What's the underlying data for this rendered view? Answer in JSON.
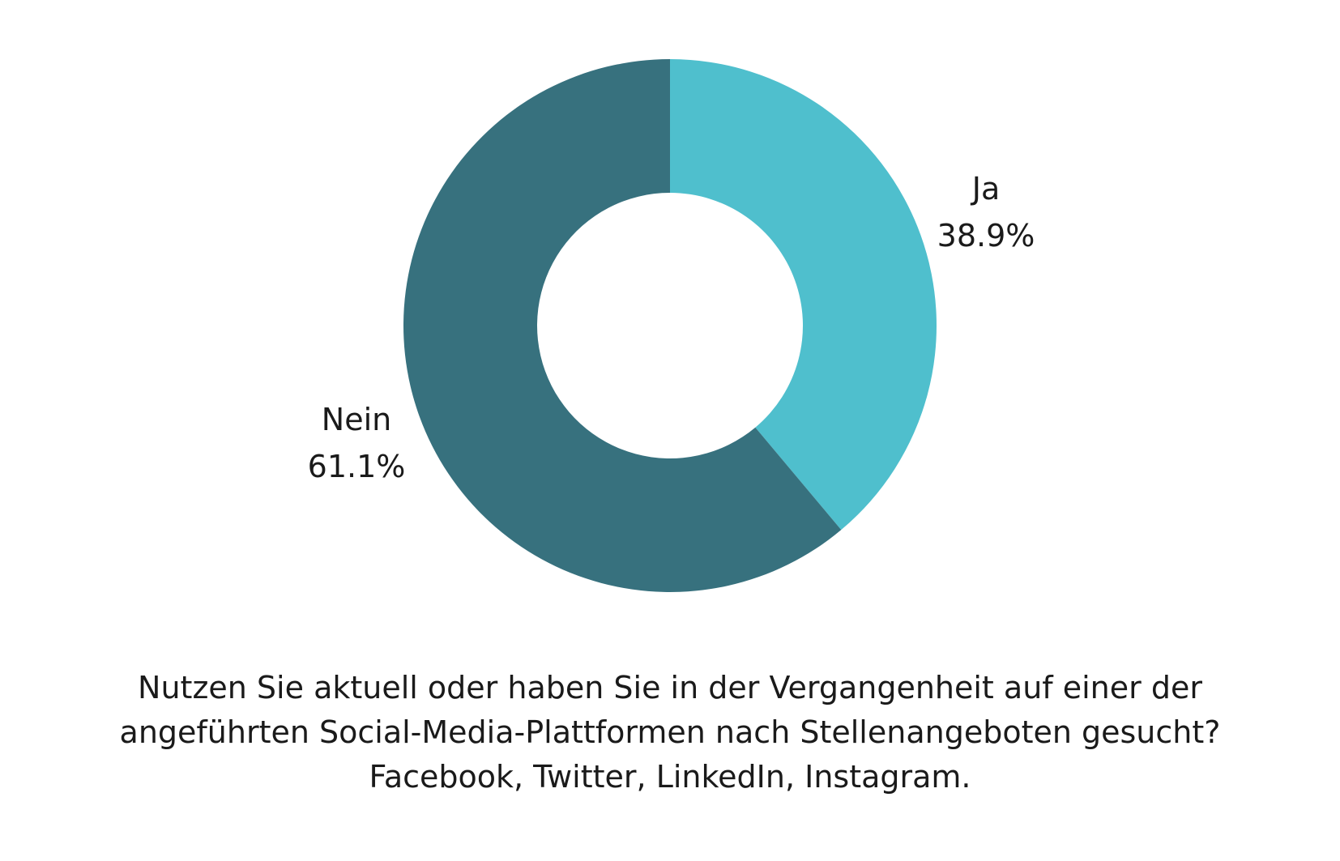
{
  "chart_data": {
    "type": "pie",
    "variant": "donut",
    "slices": [
      {
        "label": "Ja",
        "value": 38.9,
        "value_label": "38.9%",
        "color": "#4fbfcd"
      },
      {
        "label": "Nein",
        "value": 61.1,
        "value_label": "61.1%",
        "color": "#37717e"
      }
    ],
    "start_angle": "12 o'clock",
    "direction": "clockwise",
    "legend": "none",
    "labels_position": "outside",
    "caption_lines": [
      "Nutzen Sie aktuell oder haben Sie in der Vergangenheit auf einer der",
      "angeführten Social-Media-Plattformen nach Stellenangeboten gesucht?",
      "Facebook, Twitter, LinkedIn, Instagram."
    ]
  }
}
